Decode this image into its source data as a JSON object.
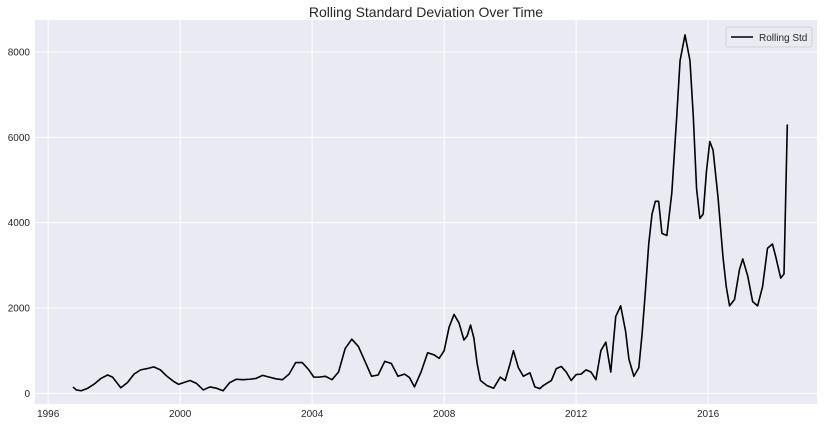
{
  "chart_data": {
    "type": "line",
    "title": "Rolling Standard Deviation Over Time",
    "xlabel": "",
    "ylabel": "",
    "xlim": [
      1995.6,
      2019.3
    ],
    "ylim": [
      -250,
      8750
    ],
    "x_ticks": [
      1996,
      2000,
      2004,
      2008,
      2012,
      2016
    ],
    "x_tick_labels": [
      "1996",
      "2000",
      "2004",
      "2008",
      "2012",
      "2016"
    ],
    "y_ticks": [
      0,
      2000,
      4000,
      6000,
      8000
    ],
    "y_tick_labels": [
      "0",
      "2000",
      "4000",
      "6000",
      "8000"
    ],
    "grid": true,
    "legend_position": "top-right",
    "colors": {
      "background": "#eaeaf2",
      "grid": "#ffffff",
      "line": "#000000"
    },
    "series": [
      {
        "name": "Rolling Std",
        "x": [
          1996.75,
          1996.85,
          1997.0,
          1997.2,
          1997.4,
          1997.6,
          1997.8,
          1997.95,
          1998.05,
          1998.2,
          1998.4,
          1998.6,
          1998.8,
          1999.0,
          1999.2,
          1999.4,
          1999.6,
          1999.8,
          1999.95,
          2000.1,
          2000.3,
          2000.5,
          2000.7,
          2000.9,
          2001.1,
          2001.3,
          2001.5,
          2001.7,
          2001.9,
          2002.1,
          2002.3,
          2002.5,
          2002.7,
          2002.9,
          2003.1,
          2003.3,
          2003.5,
          2003.7,
          2003.9,
          2004.05,
          2004.2,
          2004.4,
          2004.6,
          2004.8,
          2005.0,
          2005.2,
          2005.4,
          2005.6,
          2005.8,
          2006.0,
          2006.2,
          2006.4,
          2006.6,
          2006.8,
          2006.95,
          2007.1,
          2007.3,
          2007.5,
          2007.7,
          2007.85,
          2008.0,
          2008.15,
          2008.3,
          2008.45,
          2008.6,
          2008.7,
          2008.8,
          2008.9,
          2009.0,
          2009.1,
          2009.3,
          2009.5,
          2009.7,
          2009.85,
          2010.0,
          2010.1,
          2010.25,
          2010.4,
          2010.6,
          2010.75,
          2010.9,
          2011.0,
          2011.1,
          2011.25,
          2011.4,
          2011.55,
          2011.7,
          2011.85,
          2012.0,
          2012.15,
          2012.3,
          2012.45,
          2012.6,
          2012.75,
          2012.9,
          2013.05,
          2013.2,
          2013.35,
          2013.5,
          2013.6,
          2013.75,
          2013.9,
          2014.0,
          2014.1,
          2014.2,
          2014.3,
          2014.4,
          2014.5,
          2014.6,
          2014.75,
          2014.9,
          2015.05,
          2015.15,
          2015.3,
          2015.45,
          2015.55,
          2015.65,
          2015.75,
          2015.85,
          2015.95,
          2016.05,
          2016.15,
          2016.3,
          2016.45,
          2016.55,
          2016.65,
          2016.8,
          2016.95,
          2017.05,
          2017.2,
          2017.35,
          2017.5,
          2017.65,
          2017.8,
          2017.95,
          2018.05,
          2018.2,
          2018.3,
          2018.4
        ],
        "values": [
          150,
          80,
          60,
          120,
          220,
          350,
          430,
          380,
          280,
          130,
          250,
          450,
          550,
          580,
          620,
          550,
          400,
          280,
          210,
          250,
          300,
          230,
          80,
          150,
          120,
          60,
          250,
          330,
          320,
          330,
          350,
          420,
          380,
          340,
          320,
          450,
          720,
          720,
          550,
          380,
          380,
          400,
          320,
          500,
          1050,
          1270,
          1100,
          750,
          400,
          430,
          750,
          700,
          400,
          450,
          370,
          150,
          500,
          950,
          900,
          820,
          1000,
          1550,
          1850,
          1650,
          1250,
          1350,
          1600,
          1300,
          700,
          300,
          180,
          120,
          380,
          300,
          700,
          1000,
          600,
          400,
          480,
          150,
          110,
          180,
          230,
          300,
          580,
          630,
          500,
          300,
          440,
          450,
          550,
          500,
          320,
          1000,
          1200,
          500,
          1800,
          2050,
          1450,
          800,
          400,
          600,
          1400,
          2400,
          3500,
          4200,
          4500,
          4500,
          3750,
          3700,
          4700,
          6500,
          7800,
          8400,
          7800,
          6500,
          4800,
          4100,
          4200,
          5200,
          5900,
          5700,
          4600,
          3200,
          2500,
          2050,
          2200,
          2900,
          3150,
          2750,
          2150,
          2050,
          2500,
          3400,
          3500,
          3200,
          2700,
          2800,
          6300
        ]
      }
    ]
  }
}
